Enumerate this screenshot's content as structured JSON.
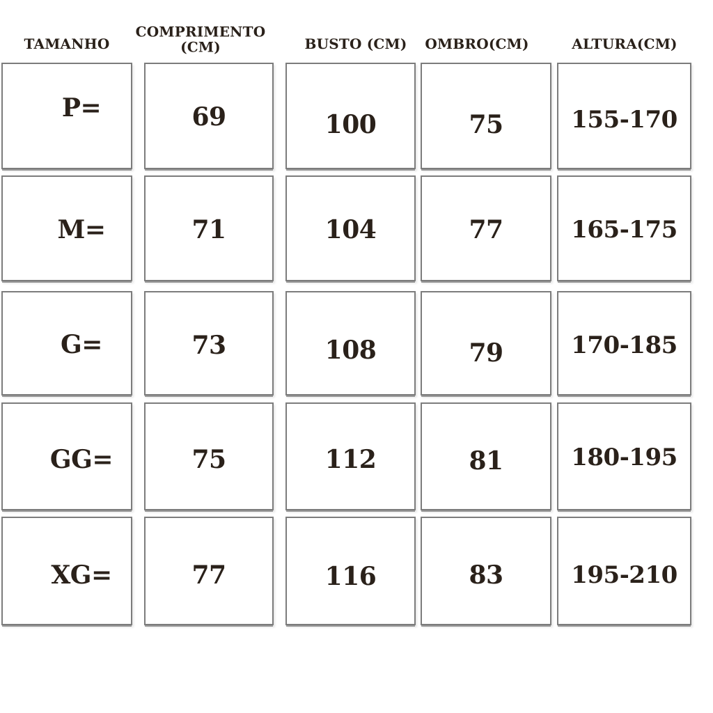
{
  "table": {
    "headers": [
      {
        "id": "tamanho",
        "label": "TAMANHO"
      },
      {
        "id": "comprimento",
        "label": "COMPRIMENTO (CM)",
        "line1": "COMPRIMENTO",
        "line2": "(CM)"
      },
      {
        "id": "busto",
        "label": "BUSTO (CM)"
      },
      {
        "id": "ombro",
        "label": "OMBRO(CM)"
      },
      {
        "id": "altura",
        "label": "ALTURA(CM)"
      }
    ],
    "rows": [
      {
        "cells": [
          "P=",
          "69",
          "100",
          "75",
          "155-170"
        ]
      },
      {
        "cells": [
          "M=",
          "71",
          "104",
          "77",
          "165-175"
        ]
      },
      {
        "cells": [
          "G=",
          "73",
          "108",
          "79",
          "170-185"
        ]
      },
      {
        "cells": [
          "GG=",
          "75",
          "112",
          "81",
          "180-195"
        ]
      },
      {
        "cells": [
          "XG=",
          "77",
          "116",
          "83",
          "195-210"
        ]
      }
    ]
  },
  "chart_data": {
    "type": "table",
    "title": "",
    "columns": [
      "TAMANHO",
      "COMPRIMENTO (CM)",
      "BUSTO (CM)",
      "OMBRO(CM)",
      "ALTURA(CM)"
    ],
    "rows": [
      [
        "P=",
        69,
        100,
        75,
        "155-170"
      ],
      [
        "M=",
        71,
        104,
        77,
        "165-175"
      ],
      [
        "G=",
        73,
        108,
        79,
        "170-185"
      ],
      [
        "GG=",
        75,
        112,
        81,
        "180-195"
      ],
      [
        "XG=",
        77,
        116,
        83,
        "195-210"
      ]
    ],
    "layout_hints": {
      "grid": "separate boxed cells",
      "header_position": "top"
    }
  },
  "colors": {
    "text": "#2a211a",
    "border": "#7c7c7c",
    "background": "#ffffff"
  }
}
